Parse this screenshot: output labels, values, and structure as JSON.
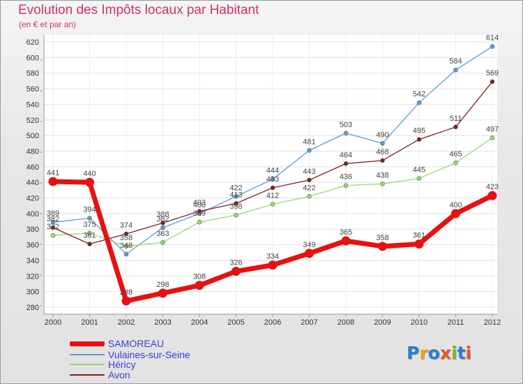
{
  "title": "Evolution des Impôts locaux par Habitant",
  "subtitle": "(en € et par an)",
  "logo": {
    "text": "Proxiti",
    "colors": [
      "#2e7bd6",
      "#f0a020",
      "#2e7bd6",
      "#e05a2a",
      "#7ab82e",
      "#2e7bd6",
      "#e05a2a"
    ]
  },
  "chart_data": {
    "type": "line",
    "title": "Evolution des Impôts locaux par Habitant",
    "subtitle": "(en € et par an)",
    "x": [
      "2000",
      "2001",
      "2002",
      "2003",
      "2004",
      "2005",
      "2006",
      "2007",
      "2008",
      "2009",
      "2010",
      "2011",
      "2012"
    ],
    "yticks": [
      "280",
      "300",
      "320",
      "340",
      "360",
      "380",
      "400",
      "420",
      "440",
      "460",
      "480",
      "500",
      "520",
      "540",
      "560",
      "580",
      "600",
      "620"
    ],
    "ylim": [
      280,
      620
    ],
    "grid": true,
    "legend_position": "bottom-left",
    "series": [
      {
        "name": "SAMOREAU",
        "color": "#e81010",
        "bold": true,
        "values": [
          441,
          440,
          288,
          298,
          308,
          326,
          334,
          349,
          365,
          358,
          361,
          400,
          423
        ]
      },
      {
        "name": "Vulaines-sur-Seine",
        "color": "#5b9bd5",
        "bold": false,
        "values": [
          389,
          394,
          348,
          382,
          400,
          422,
          444,
          481,
          503,
          490,
          542,
          584,
          614
        ]
      },
      {
        "name": "Héricy",
        "color": "#9ad86a",
        "bold": false,
        "values": [
          372,
          375,
          358,
          363,
          389,
          398,
          412,
          422,
          436,
          438,
          445,
          465,
          497
        ]
      },
      {
        "name": "Avon",
        "color": "#7a2222",
        "bold": false,
        "values": [
          382,
          361,
          374,
          388,
          403,
          413,
          433,
          443,
          464,
          468,
          495,
          511,
          569
        ]
      }
    ]
  }
}
